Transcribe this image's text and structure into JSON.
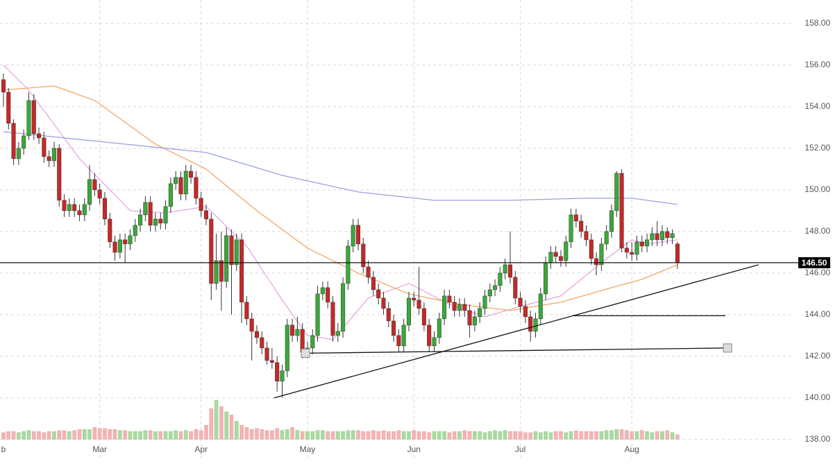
{
  "chart_data": {
    "type": "candlestick",
    "ylim": [
      137.13,
      159.13
    ],
    "xlim": [
      -0.68,
      155.48
    ],
    "yticks": [
      {
        "value": 138,
        "label": "138.00"
      },
      {
        "value": 140,
        "label": "140.00"
      },
      {
        "value": 142,
        "label": "142.00"
      },
      {
        "value": 144,
        "label": "144.00"
      },
      {
        "value": 146,
        "label": "146.00"
      },
      {
        "value": 148,
        "label": "148.00"
      },
      {
        "value": 150,
        "label": "150.00"
      },
      {
        "value": 152,
        "label": "152.00"
      },
      {
        "value": 154,
        "label": "154.00"
      },
      {
        "value": 156,
        "label": "156.00"
      },
      {
        "value": 158,
        "label": "158.00"
      }
    ],
    "xticks": [
      {
        "value": 0,
        "label": "b"
      },
      {
        "value": 19,
        "label": "Mar"
      },
      {
        "value": 39,
        "label": "Apr"
      },
      {
        "value": 60,
        "label": "May"
      },
      {
        "value": 81,
        "label": "Jun"
      },
      {
        "value": 102,
        "label": "Jul"
      },
      {
        "value": 124,
        "label": "Aug"
      }
    ],
    "grid": true,
    "up_color": "#3aa83a",
    "down_color": "#c62828",
    "candles": [
      [
        155.3,
        155.6,
        154.0,
        154.7
      ],
      [
        154.7,
        154.9,
        152.9,
        153.2
      ],
      [
        153.2,
        153.4,
        151.2,
        151.5
      ],
      [
        151.5,
        152.3,
        151.2,
        152.0
      ],
      [
        152.0,
        152.9,
        151.7,
        152.6
      ],
      [
        152.6,
        154.7,
        152.4,
        154.3
      ],
      [
        154.3,
        154.6,
        152.4,
        152.7
      ],
      [
        152.7,
        153.0,
        152.2,
        152.5
      ],
      [
        152.5,
        152.8,
        151.3,
        151.6
      ],
      [
        151.6,
        151.9,
        151.1,
        151.4
      ],
      [
        151.4,
        152.3,
        151.1,
        152.0
      ],
      [
        152.0,
        152.2,
        149.2,
        149.5
      ],
      [
        149.5,
        149.8,
        148.7,
        149.0
      ],
      [
        149.0,
        149.6,
        148.7,
        149.3
      ],
      [
        149.3,
        149.6,
        148.7,
        149.0
      ],
      [
        149.0,
        149.3,
        148.5,
        148.8
      ],
      [
        148.8,
        149.6,
        148.5,
        149.3
      ],
      [
        149.3,
        151.2,
        149.0,
        150.5
      ],
      [
        150.5,
        150.8,
        149.7,
        150.0
      ],
      [
        150.0,
        150.3,
        149.3,
        149.6
      ],
      [
        149.6,
        149.9,
        148.3,
        148.6
      ],
      [
        148.6,
        148.9,
        147.2,
        147.5
      ],
      [
        147.5,
        147.8,
        146.6,
        147.0
      ],
      [
        147.0,
        147.9,
        146.7,
        147.6
      ],
      [
        147.6,
        147.9,
        146.5,
        147.4
      ],
      [
        147.4,
        148.1,
        147.1,
        147.8
      ],
      [
        147.8,
        148.6,
        147.5,
        148.3
      ],
      [
        148.3,
        149.1,
        148.0,
        148.8
      ],
      [
        148.8,
        149.7,
        148.5,
        149.4
      ],
      [
        149.4,
        149.7,
        148.0,
        148.3
      ],
      [
        148.3,
        148.9,
        148.0,
        148.6
      ],
      [
        148.6,
        148.9,
        148.1,
        148.4
      ],
      [
        148.4,
        149.5,
        148.1,
        149.2
      ],
      [
        149.2,
        150.6,
        148.9,
        150.3
      ],
      [
        150.3,
        150.9,
        150.0,
        150.6
      ],
      [
        150.6,
        150.9,
        149.5,
        149.8
      ],
      [
        149.8,
        151.2,
        149.5,
        150.9
      ],
      [
        150.9,
        151.2,
        150.3,
        150.6
      ],
      [
        150.6,
        150.9,
        149.3,
        149.6
      ],
      [
        149.6,
        149.9,
        148.7,
        149.0
      ],
      [
        149.0,
        149.3,
        148.3,
        148.6
      ],
      [
        148.6,
        148.9,
        144.7,
        145.5
      ],
      [
        145.5,
        147.9,
        145.2,
        146.6
      ],
      [
        146.6,
        148.0,
        144.2,
        145.6
      ],
      [
        145.6,
        148.2,
        145.3,
        147.8
      ],
      [
        147.8,
        148.1,
        144.0,
        146.4
      ],
      [
        146.4,
        147.9,
        146.1,
        147.6
      ],
      [
        147.6,
        147.9,
        143.6,
        144.6
      ],
      [
        144.6,
        144.9,
        143.5,
        143.8
      ],
      [
        143.8,
        144.1,
        141.8,
        143.2
      ],
      [
        143.2,
        143.5,
        142.6,
        142.9
      ],
      [
        142.9,
        143.2,
        142.1,
        142.4
      ],
      [
        142.4,
        142.7,
        141.6,
        141.8
      ],
      [
        141.8,
        142.4,
        141.4,
        141.7
      ],
      [
        141.7,
        142.0,
        140.3,
        140.8
      ],
      [
        140.8,
        141.6,
        140.0,
        141.3
      ],
      [
        141.3,
        143.8,
        141.0,
        143.5
      ],
      [
        143.5,
        143.8,
        142.7,
        143.0
      ],
      [
        143.0,
        143.9,
        142.7,
        143.3
      ],
      [
        143.3,
        143.6,
        141.9,
        142.2
      ],
      [
        142.2,
        142.7,
        141.9,
        142.4
      ],
      [
        142.4,
        143.3,
        142.1,
        143.0
      ],
      [
        143.0,
        145.4,
        142.7,
        145.0
      ],
      [
        145.0,
        145.6,
        144.7,
        145.3
      ],
      [
        145.3,
        145.6,
        144.3,
        144.6
      ],
      [
        144.6,
        144.9,
        142.7,
        143.0
      ],
      [
        143.0,
        143.6,
        142.7,
        143.2
      ],
      [
        143.2,
        145.8,
        142.9,
        145.5
      ],
      [
        145.5,
        147.6,
        145.2,
        147.3
      ],
      [
        147.3,
        148.6,
        147.0,
        148.3
      ],
      [
        148.3,
        148.6,
        147.1,
        147.4
      ],
      [
        147.4,
        147.7,
        146.0,
        146.3
      ],
      [
        146.3,
        146.6,
        145.5,
        145.8
      ],
      [
        145.8,
        146.1,
        144.9,
        145.2
      ],
      [
        145.2,
        145.5,
        144.5,
        144.8
      ],
      [
        144.8,
        145.1,
        144.0,
        144.3
      ],
      [
        144.3,
        144.6,
        143.4,
        143.7
      ],
      [
        143.7,
        144.0,
        142.7,
        143.0
      ],
      [
        143.0,
        143.3,
        142.2,
        142.5
      ],
      [
        142.5,
        143.8,
        142.2,
        143.5
      ],
      [
        143.5,
        145.1,
        143.2,
        144.8
      ],
      [
        144.8,
        145.1,
        144.4,
        144.7
      ],
      [
        144.7,
        146.3,
        144.0,
        144.3
      ],
      [
        144.3,
        144.6,
        143.2,
        143.5
      ],
      [
        143.5,
        143.8,
        142.2,
        142.5
      ],
      [
        142.5,
        143.2,
        142.2,
        142.9
      ],
      [
        142.9,
        144.1,
        142.6,
        143.8
      ],
      [
        143.8,
        145.2,
        143.5,
        144.9
      ],
      [
        144.9,
        145.2,
        144.3,
        144.6
      ],
      [
        144.6,
        144.9,
        143.9,
        144.2
      ],
      [
        144.2,
        144.8,
        143.9,
        144.5
      ],
      [
        144.5,
        144.8,
        143.9,
        144.2
      ],
      [
        144.2,
        144.5,
        142.9,
        143.5
      ],
      [
        143.5,
        144.2,
        143.2,
        143.9
      ],
      [
        143.9,
        144.6,
        143.6,
        144.3
      ],
      [
        144.3,
        145.2,
        144.0,
        144.9
      ],
      [
        144.9,
        145.5,
        144.6,
        145.2
      ],
      [
        145.2,
        145.7,
        144.9,
        145.4
      ],
      [
        145.4,
        146.3,
        145.1,
        146.0
      ],
      [
        146.0,
        146.7,
        145.7,
        146.4
      ],
      [
        146.4,
        148.0,
        145.5,
        145.8
      ],
      [
        145.8,
        146.1,
        144.5,
        144.8
      ],
      [
        144.8,
        145.1,
        144.1,
        144.4
      ],
      [
        144.4,
        144.7,
        143.6,
        143.9
      ],
      [
        143.9,
        144.2,
        142.7,
        143.2
      ],
      [
        143.2,
        144.1,
        142.9,
        143.8
      ],
      [
        143.8,
        145.3,
        143.5,
        145.0
      ],
      [
        145.0,
        146.8,
        144.7,
        146.5
      ],
      [
        146.5,
        147.3,
        146.2,
        147.0
      ],
      [
        147.0,
        147.3,
        146.5,
        146.8
      ],
      [
        146.8,
        147.1,
        146.3,
        146.6
      ],
      [
        146.6,
        147.8,
        146.3,
        147.5
      ],
      [
        147.5,
        149.1,
        147.2,
        148.8
      ],
      [
        148.8,
        149.1,
        148.2,
        148.5
      ],
      [
        148.5,
        148.8,
        147.7,
        148.0
      ],
      [
        148.0,
        148.3,
        147.3,
        147.6
      ],
      [
        147.6,
        147.9,
        146.4,
        146.7
      ],
      [
        146.7,
        147.0,
        145.9,
        146.4
      ],
      [
        146.4,
        147.7,
        146.1,
        147.4
      ],
      [
        147.4,
        148.3,
        147.1,
        148.0
      ],
      [
        148.0,
        149.3,
        147.7,
        149.0
      ],
      [
        149.0,
        150.9,
        148.7,
        150.8
      ],
      [
        150.8,
        151.0,
        147.0,
        147.2
      ],
      [
        147.2,
        147.5,
        146.7,
        147.0
      ],
      [
        147.0,
        147.5,
        146.6,
        146.9
      ],
      [
        146.9,
        147.8,
        146.6,
        147.5
      ],
      [
        147.5,
        147.8,
        147.0,
        147.3
      ],
      [
        147.3,
        147.9,
        147.0,
        147.6
      ],
      [
        147.6,
        148.2,
        147.3,
        147.9
      ],
      [
        147.9,
        148.5,
        147.3,
        147.6
      ],
      [
        147.6,
        148.3,
        147.3,
        148.0
      ],
      [
        148.0,
        148.2,
        147.4,
        147.7
      ],
      [
        147.7,
        148.1,
        147.4,
        147.9
      ],
      [
        147.4,
        147.5,
        146.2,
        146.5
      ]
    ],
    "volume_lim": [
      0,
      100
    ],
    "volume": [
      7,
      8,
      8,
      7,
      8,
      9,
      8,
      8,
      7,
      8,
      8,
      9,
      9,
      8,
      9,
      10,
      10,
      10,
      12,
      11,
      11,
      10,
      10,
      9,
      9,
      8,
      8,
      8,
      9,
      9,
      8,
      8,
      8,
      8,
      9,
      8,
      9,
      8,
      10,
      9,
      14,
      30,
      38,
      32,
      27,
      24,
      18,
      14,
      12,
      10,
      11,
      10,
      9,
      9,
      11,
      9,
      10,
      12,
      9,
      8,
      8,
      8,
      9,
      9,
      8,
      8,
      8,
      8,
      9,
      9,
      9,
      8,
      8,
      9,
      8,
      9,
      8,
      8,
      9,
      8,
      8,
      9,
      8,
      8,
      7,
      8,
      8,
      8,
      7,
      8,
      8,
      9,
      8,
      8,
      8,
      7,
      8,
      9,
      8,
      9,
      8,
      8,
      8,
      7,
      7,
      8,
      7,
      8,
      7,
      8,
      8,
      7,
      8,
      9,
      8,
      8,
      8,
      8,
      8,
      9,
      9,
      10,
      10,
      9,
      8,
      8,
      9,
      8,
      7,
      8,
      8,
      9,
      7,
      5
    ],
    "volume_up_color": "#a9d9a0",
    "volume_down_color": "#f3b3b3",
    "moving_averages": [
      {
        "color": "#e7a6e0",
        "x": [
          0,
          5,
          15,
          25,
          32,
          40,
          48,
          55,
          60,
          65,
          72,
          80,
          88,
          95,
          102,
          110,
          118,
          124,
          127,
          133
        ],
        "values": [
          156.0,
          154.8,
          151.5,
          149.0,
          148.9,
          149.2,
          147.3,
          144.7,
          143.0,
          142.8,
          144.8,
          145.5,
          144.5,
          143.9,
          144.4,
          144.9,
          146.5,
          147.6,
          147.4,
          147.6
        ]
      },
      {
        "color": "#f0a766",
        "x": [
          0,
          10,
          18,
          30,
          40,
          50,
          60,
          70,
          80,
          90,
          100,
          110,
          120,
          126,
          133
        ],
        "values": [
          154.8,
          155.0,
          154.3,
          152.2,
          151.0,
          149.0,
          147.2,
          146.0,
          145.0,
          144.5,
          144.2,
          144.6,
          145.3,
          145.7,
          146.4
        ]
      },
      {
        "color": "#9aa0e0",
        "x": [
          0,
          20,
          40,
          55,
          70,
          85,
          100,
          115,
          124,
          133
        ],
        "values": [
          152.8,
          152.3,
          151.8,
          150.7,
          149.9,
          149.5,
          149.5,
          149.6,
          149.6,
          149.3
        ]
      }
    ],
    "last_price": {
      "value": 146.5,
      "label": "146.50"
    },
    "trendlines": [
      {
        "x": [
          53.4,
          149
        ],
        "values": [
          140.0,
          146.4
        ]
      },
      {
        "x": [
          112.3,
          142.5
        ],
        "values": [
          143.95,
          143.95
        ]
      },
      {
        "x": [
          59.6,
          142.9
        ],
        "values": [
          142.15,
          142.4
        ],
        "handles": true
      }
    ]
  }
}
